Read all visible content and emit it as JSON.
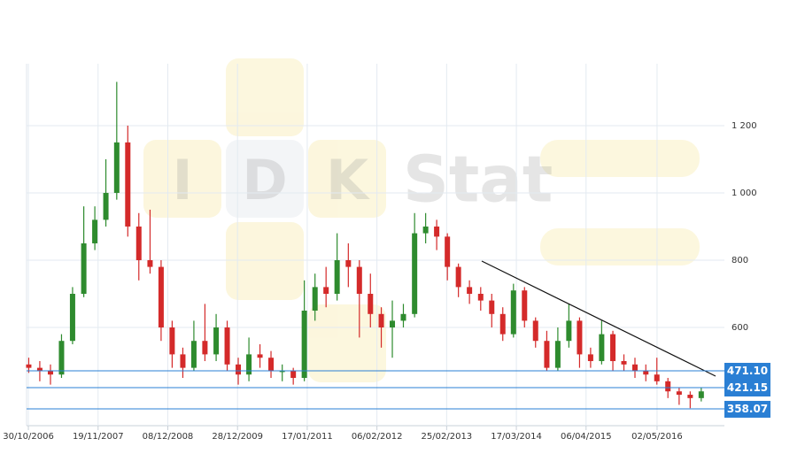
{
  "chart_data": {
    "type": "candlestick",
    "x": [
      "01/11/2006",
      "01/01/2007",
      "01/03/2007",
      "01/05/2007",
      "01/07/2007",
      "01/09/2007",
      "01/11/2007",
      "01/01/2008",
      "01/03/2008",
      "01/05/2008",
      "01/07/2008",
      "01/09/2008",
      "01/11/2008",
      "01/01/2009",
      "01/03/2009",
      "01/05/2009",
      "01/07/2009",
      "01/09/2009",
      "01/11/2009",
      "01/01/2010",
      "01/03/2010",
      "01/05/2010",
      "01/07/2010",
      "01/09/2010",
      "01/11/2010",
      "01/01/2011",
      "01/03/2011",
      "01/05/2011",
      "01/07/2011",
      "01/09/2011",
      "01/11/2011",
      "01/01/2012",
      "01/03/2012",
      "01/05/2012",
      "01/07/2012",
      "01/09/2012",
      "01/11/2012",
      "01/01/2013",
      "01/03/2013",
      "01/05/2013",
      "01/07/2013",
      "01/09/2013",
      "01/11/2013",
      "01/01/2014",
      "01/03/2014",
      "01/05/2014",
      "01/07/2014",
      "01/09/2014",
      "01/11/2014",
      "01/01/2015",
      "01/03/2015",
      "01/05/2015",
      "01/07/2015",
      "01/09/2015",
      "01/11/2015",
      "01/01/2016",
      "01/03/2016",
      "01/05/2016",
      "01/07/2016",
      "01/09/2016",
      "01/11/2016",
      "01/01/2017"
    ],
    "open": [
      490,
      480,
      470,
      460,
      560,
      700,
      850,
      920,
      1000,
      1150,
      900,
      800,
      780,
      600,
      520,
      480,
      560,
      520,
      600,
      490,
      460,
      520,
      510,
      470,
      470,
      450,
      650,
      720,
      700,
      800,
      780,
      700,
      640,
      600,
      620,
      640,
      880,
      900,
      870,
      780,
      720,
      700,
      680,
      640,
      580,
      710,
      620,
      560,
      480,
      560,
      620,
      520,
      500,
      580,
      500,
      490,
      470,
      460,
      440,
      410,
      400,
      390
    ],
    "high": [
      510,
      500,
      490,
      580,
      720,
      960,
      960,
      1100,
      1330,
      1200,
      940,
      950,
      800,
      620,
      540,
      620,
      670,
      640,
      620,
      510,
      570,
      550,
      530,
      490,
      480,
      740,
      760,
      780,
      880,
      850,
      800,
      760,
      660,
      680,
      670,
      940,
      940,
      920,
      880,
      790,
      740,
      720,
      700,
      660,
      730,
      720,
      630,
      590,
      600,
      670,
      630,
      540,
      620,
      590,
      520,
      510,
      490,
      510,
      450,
      420,
      410,
      420
    ],
    "low": [
      465,
      440,
      430,
      450,
      550,
      690,
      830,
      900,
      980,
      870,
      740,
      760,
      560,
      480,
      450,
      470,
      500,
      500,
      470,
      430,
      440,
      480,
      450,
      440,
      430,
      440,
      620,
      660,
      680,
      720,
      570,
      600,
      540,
      510,
      600,
      630,
      850,
      830,
      740,
      690,
      670,
      650,
      600,
      560,
      570,
      600,
      540,
      470,
      470,
      540,
      480,
      480,
      490,
      470,
      470,
      450,
      440,
      430,
      390,
      370,
      360,
      380
    ],
    "close": [
      480,
      470,
      460,
      560,
      700,
      850,
      920,
      1000,
      1150,
      900,
      800,
      780,
      600,
      520,
      480,
      560,
      520,
      600,
      490,
      460,
      520,
      510,
      470,
      470,
      450,
      650,
      720,
      700,
      800,
      780,
      700,
      640,
      600,
      620,
      640,
      880,
      900,
      870,
      780,
      720,
      700,
      680,
      640,
      580,
      710,
      620,
      560,
      480,
      560,
      620,
      520,
      500,
      580,
      500,
      490,
      470,
      460,
      440,
      410,
      400,
      390,
      410
    ],
    "up_color": "#2e8b2e",
    "down_color": "#d42a2a",
    "xlim": [
      "20/10/2006",
      "09/05/2017"
    ],
    "xticks": [
      "30/10/2006",
      "19/11/2007",
      "08/12/2008",
      "28/12/2009",
      "17/01/2011",
      "06/02/2012",
      "25/02/2013",
      "17/03/2014",
      "06/04/2015",
      "02/05/2016"
    ],
    "ylim": [
      308,
      1384
    ],
    "yticks": [
      {
        "value": 1200,
        "label": "1 200"
      },
      {
        "value": 1000,
        "label": "1 000"
      },
      800,
      600
    ],
    "levels": [
      {
        "value": 471.1,
        "label": "471.10"
      },
      {
        "value": 421.15,
        "label": "421.15"
      },
      {
        "value": 358.07,
        "label": "358.07"
      }
    ],
    "level_color": "#2a7fd4",
    "grid": true,
    "watermark": {
      "tiles": [
        "I",
        "D",
        "K"
      ],
      "text": "Stat"
    }
  }
}
